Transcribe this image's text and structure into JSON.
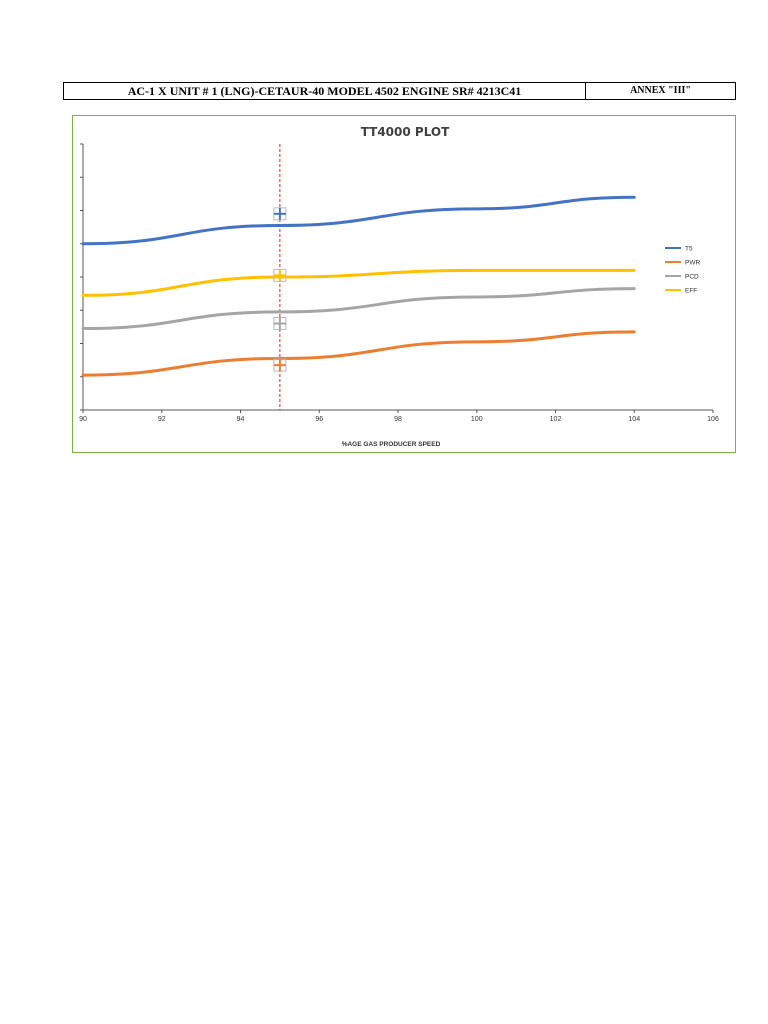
{
  "header": {
    "title": "AC-1 X UNIT # 1 (LNG)-CETAUR-40 MODEL 4502 ENGINE SR# 4213C41",
    "annex": "ANNEX \"III\""
  },
  "chart_data": {
    "type": "line",
    "title": "TT4000 PLOT",
    "xlabel": "%AGE GAS PRODUCER SPEED",
    "ylabel": "",
    "xlim": [
      90,
      106
    ],
    "ylim": [
      0,
      8
    ],
    "xticks": [
      90,
      92,
      94,
      96,
      98,
      100,
      102,
      104,
      106
    ],
    "grid": false,
    "legend_position": "right",
    "reference_line_x": 95,
    "series": [
      {
        "name": "T5",
        "color": "#4472c4",
        "x": [
          90,
          95,
          100,
          104
        ],
        "values": [
          5.0,
          5.55,
          6.05,
          6.4
        ]
      },
      {
        "name": "PWR",
        "color": "#ed7d31",
        "x": [
          90,
          95,
          100,
          104
        ],
        "values": [
          1.05,
          1.55,
          2.05,
          2.35
        ]
      },
      {
        "name": "PCD",
        "color": "#a5a5a5",
        "x": [
          90,
          95,
          100,
          104
        ],
        "values": [
          2.45,
          2.95,
          3.4,
          3.65
        ]
      },
      {
        "name": "EFF",
        "color": "#ffc000",
        "x": [
          90,
          95,
          100,
          104
        ],
        "values": [
          3.45,
          4.0,
          4.2,
          4.2
        ]
      }
    ],
    "markers": [
      {
        "series": "T5",
        "x": 95,
        "y": 5.9
      },
      {
        "series": "EFF",
        "x": 95,
        "y": 4.05
      },
      {
        "series": "PCD",
        "x": 95,
        "y": 2.6
      },
      {
        "series": "PWR",
        "x": 95,
        "y": 1.35
      }
    ]
  }
}
